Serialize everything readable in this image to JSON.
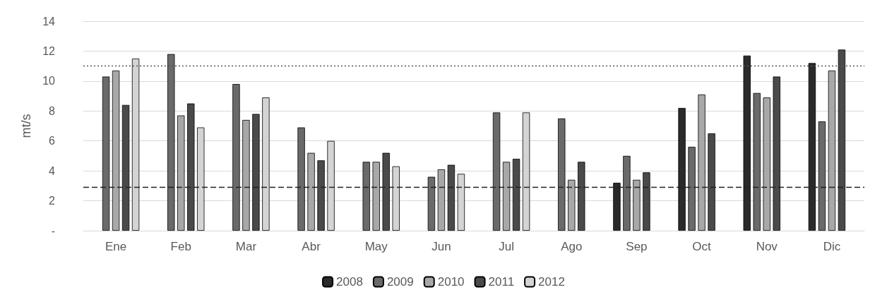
{
  "chart_data": {
    "type": "bar",
    "ylabel": "mt/s",
    "categories": [
      "Ene",
      "Feb",
      "Mar",
      "Abr",
      "May",
      "Jun",
      "Jul",
      "Ago",
      "Sep",
      "Oct",
      "Nov",
      "Dic"
    ],
    "series": [
      {
        "name": "2008",
        "color": "#2a2a2a",
        "values": [
          null,
          null,
          null,
          null,
          null,
          null,
          null,
          null,
          3.2,
          8.2,
          11.7,
          11.2
        ]
      },
      {
        "name": "2009",
        "color": "#6a6a6a",
        "values": [
          10.3,
          11.8,
          9.8,
          6.9,
          4.6,
          3.6,
          7.9,
          7.5,
          5.0,
          5.6,
          9.2,
          7.3
        ]
      },
      {
        "name": "2010",
        "color": "#a8a8a8",
        "values": [
          10.7,
          7.7,
          7.4,
          5.2,
          4.6,
          4.1,
          4.6,
          3.4,
          3.4,
          9.1,
          8.9,
          10.7
        ]
      },
      {
        "name": "2011",
        "color": "#4a4a4a",
        "values": [
          8.4,
          8.5,
          7.8,
          4.7,
          5.2,
          4.4,
          4.8,
          4.6,
          3.9,
          6.5,
          10.3,
          12.1
        ]
      },
      {
        "name": "2012",
        "color": "#d4d4d4",
        "values": [
          11.5,
          6.9,
          8.9,
          6.0,
          4.3,
          3.8,
          7.9,
          null,
          null,
          null,
          null,
          null
        ]
      }
    ],
    "ylim": [
      0,
      14
    ],
    "yticks": [
      {
        "value": 0,
        "label": "-"
      },
      2,
      4,
      6,
      8,
      10,
      12,
      14
    ],
    "grid": "y",
    "legend": "bottom",
    "ref_lines": [
      {
        "axis": "y",
        "value": 11.0,
        "color": "#555555",
        "line_style": "dotted"
      },
      {
        "axis": "y",
        "value": 2.9,
        "color": "#222222",
        "line_style": "dashed"
      }
    ]
  }
}
